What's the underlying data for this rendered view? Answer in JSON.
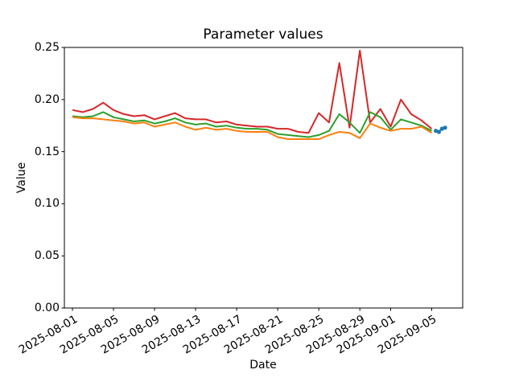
{
  "chart_data": {
    "type": "line",
    "title": "Parameter values",
    "xlabel": "Date",
    "ylabel": "Value",
    "ylim": [
      0.0,
      0.25
    ],
    "grid": false,
    "legend": "none",
    "y_tick_values": [
      0.0,
      0.05,
      0.1,
      0.15,
      0.2,
      0.25
    ],
    "y_tick_labels": [
      "0.00",
      "0.05",
      "0.10",
      "0.15",
      "0.20",
      "0.25"
    ],
    "x_tick_day_offsets": [
      0,
      4,
      8,
      12,
      16,
      20,
      24,
      28,
      31,
      35
    ],
    "x_tick_labels": [
      "2025-08-01",
      "2025-08-05",
      "2025-08-09",
      "2025-08-13",
      "2025-08-17",
      "2025-08-21",
      "2025-08-25",
      "2025-08-29",
      "2025-09-01",
      "2025-09-05"
    ],
    "x_dates": [
      "2025-08-01",
      "2025-08-02",
      "2025-08-03",
      "2025-08-04",
      "2025-08-05",
      "2025-08-06",
      "2025-08-07",
      "2025-08-08",
      "2025-08-09",
      "2025-08-10",
      "2025-08-11",
      "2025-08-12",
      "2025-08-13",
      "2025-08-14",
      "2025-08-15",
      "2025-08-16",
      "2025-08-17",
      "2025-08-18",
      "2025-08-19",
      "2025-08-20",
      "2025-08-21",
      "2025-08-22",
      "2025-08-23",
      "2025-08-24",
      "2025-08-25",
      "2025-08-26",
      "2025-08-27",
      "2025-08-28",
      "2025-08-29",
      "2025-08-30",
      "2025-08-31",
      "2025-09-01",
      "2025-09-02",
      "2025-09-03",
      "2025-09-04",
      "2025-09-05"
    ],
    "series": [
      {
        "name": "red-line",
        "color": "#d62728",
        "values": [
          0.19,
          0.188,
          0.191,
          0.197,
          0.19,
          0.186,
          0.184,
          0.185,
          0.181,
          0.184,
          0.187,
          0.182,
          0.181,
          0.181,
          0.178,
          0.179,
          0.176,
          0.175,
          0.174,
          0.174,
          0.172,
          0.172,
          0.169,
          0.168,
          0.187,
          0.178,
          0.235,
          0.173,
          0.247,
          0.178,
          0.191,
          0.174,
          0.2,
          0.186,
          0.18,
          0.172
        ]
      },
      {
        "name": "green-line",
        "color": "#2ca02c",
        "values": [
          0.184,
          0.183,
          0.184,
          0.188,
          0.183,
          0.181,
          0.179,
          0.18,
          0.177,
          0.179,
          0.182,
          0.178,
          0.176,
          0.177,
          0.174,
          0.175,
          0.173,
          0.172,
          0.172,
          0.171,
          0.167,
          0.166,
          0.165,
          0.164,
          0.166,
          0.17,
          0.186,
          0.178,
          0.168,
          0.188,
          0.183,
          0.171,
          0.181,
          0.178,
          0.175,
          0.17
        ]
      },
      {
        "name": "orange-line",
        "color": "#ff7f0e",
        "values": [
          0.183,
          0.182,
          0.182,
          0.181,
          0.18,
          0.179,
          0.177,
          0.178,
          0.174,
          0.176,
          0.178,
          0.174,
          0.171,
          0.173,
          0.171,
          0.172,
          0.17,
          0.169,
          0.169,
          0.169,
          0.164,
          0.162,
          0.162,
          0.162,
          0.162,
          0.166,
          0.169,
          0.168,
          0.163,
          0.177,
          0.173,
          0.17,
          0.172,
          0.172,
          0.174,
          0.168
        ]
      }
    ],
    "marker_series": {
      "name": "blue-marker-tail",
      "color": "#1f77b4",
      "day_offsets": [
        35.4,
        35.7,
        36.0,
        36.3
      ],
      "values": [
        0.17,
        0.169,
        0.172,
        0.173
      ]
    }
  }
}
